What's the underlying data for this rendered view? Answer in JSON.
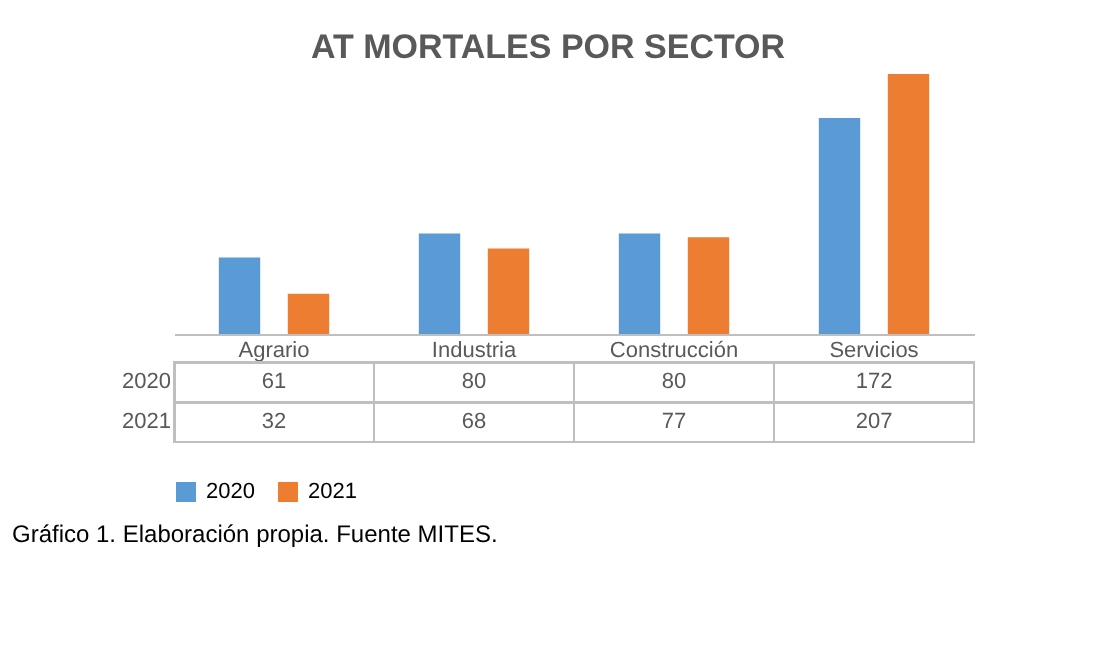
{
  "chart_data": {
    "type": "bar",
    "title": "AT MORTALES POR SECTOR",
    "categories": [
      "Agrario",
      "Industria",
      "Construcción",
      "Servicios"
    ],
    "series": [
      {
        "name": "2020",
        "color": "#5b9bd5",
        "values": [
          61,
          80,
          80,
          172
        ]
      },
      {
        "name": "2021",
        "color": "#ed7d31",
        "values": [
          32,
          68,
          77,
          207
        ]
      }
    ],
    "data_labels": true,
    "legend": "bottom",
    "annotations": [
      "Gráfico 1. Elaboración propia. Fuente MITES."
    ]
  }
}
